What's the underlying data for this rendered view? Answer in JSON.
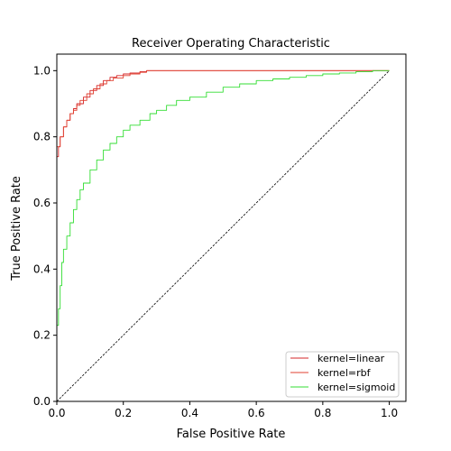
{
  "chart_data": {
    "type": "line",
    "title": "Receiver Operating Characteristic",
    "xlabel": "False Positive Rate",
    "ylabel": "True Positive Rate",
    "xlim": [
      0.0,
      1.05
    ],
    "ylim": [
      0.0,
      1.05
    ],
    "xticks": [
      0.0,
      0.2,
      0.4,
      0.6,
      0.8,
      1.0
    ],
    "yticks": [
      0.0,
      0.2,
      0.4,
      0.6,
      0.8,
      1.0
    ],
    "xtick_labels": [
      "0.0",
      "0.2",
      "0.4",
      "0.6",
      "0.8",
      "1.0"
    ],
    "ytick_labels": [
      "0.0",
      "0.2",
      "0.4",
      "0.6",
      "0.8",
      "1.0"
    ],
    "grid": false,
    "legend_position": "lower-right",
    "diagonal": {
      "x": [
        0.0,
        1.0
      ],
      "y": [
        0.0,
        1.0
      ],
      "color": "#000000",
      "style": "dashed"
    },
    "series": [
      {
        "name": "kernel=linear",
        "color": "#d62728",
        "x": [
          0.0,
          0.0,
          0.005,
          0.01,
          0.02,
          0.03,
          0.04,
          0.05,
          0.06,
          0.08,
          0.1,
          0.12,
          0.14,
          0.16,
          0.18,
          0.2,
          0.22,
          0.25,
          0.27,
          0.3,
          0.5,
          0.8,
          1.0
        ],
        "y": [
          0.0,
          0.74,
          0.77,
          0.8,
          0.83,
          0.85,
          0.87,
          0.885,
          0.9,
          0.92,
          0.94,
          0.955,
          0.97,
          0.98,
          0.985,
          0.99,
          0.993,
          0.997,
          1.0,
          1.0,
          1.0,
          1.0,
          1.0
        ]
      },
      {
        "name": "kernel=rbf",
        "color": "#e04030",
        "x": [
          0.0,
          0.0,
          0.01,
          0.02,
          0.03,
          0.04,
          0.05,
          0.06,
          0.07,
          0.09,
          0.11,
          0.13,
          0.15,
          0.17,
          0.2,
          0.22,
          0.25,
          0.27,
          0.3,
          0.5,
          0.8,
          1.0
        ],
        "y": [
          0.0,
          0.77,
          0.8,
          0.83,
          0.85,
          0.87,
          0.88,
          0.895,
          0.91,
          0.93,
          0.945,
          0.96,
          0.97,
          0.978,
          0.985,
          0.99,
          0.995,
          1.0,
          1.0,
          1.0,
          1.0,
          1.0
        ]
      },
      {
        "name": "kernel=sigmoid",
        "color": "#33dd33",
        "x": [
          0.0,
          0.0,
          0.005,
          0.01,
          0.015,
          0.02,
          0.03,
          0.04,
          0.05,
          0.06,
          0.07,
          0.08,
          0.1,
          0.12,
          0.14,
          0.16,
          0.18,
          0.2,
          0.22,
          0.25,
          0.28,
          0.3,
          0.33,
          0.36,
          0.4,
          0.45,
          0.5,
          0.55,
          0.6,
          0.65,
          0.7,
          0.75,
          0.8,
          0.85,
          0.9,
          0.95,
          1.0
        ],
        "y": [
          0.0,
          0.23,
          0.28,
          0.35,
          0.42,
          0.46,
          0.5,
          0.54,
          0.58,
          0.61,
          0.64,
          0.66,
          0.7,
          0.73,
          0.76,
          0.78,
          0.8,
          0.82,
          0.835,
          0.85,
          0.87,
          0.88,
          0.895,
          0.91,
          0.92,
          0.935,
          0.95,
          0.96,
          0.97,
          0.975,
          0.98,
          0.985,
          0.99,
          0.993,
          0.997,
          1.0,
          1.0
        ]
      }
    ]
  }
}
